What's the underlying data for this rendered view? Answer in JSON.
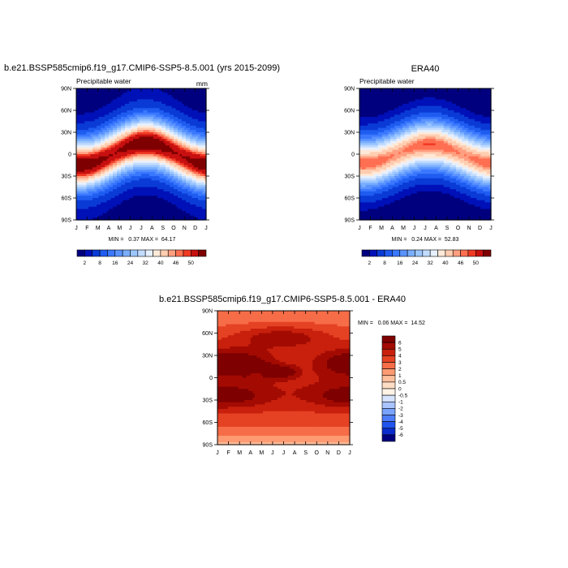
{
  "palette_main": [
    "#00007f",
    "#0011b8",
    "#0a3bd6",
    "#1f5cf0",
    "#3a78ff",
    "#5a93ff",
    "#7aaeff",
    "#9cc6ff",
    "#c2dcff",
    "#e6f0ff",
    "#ffe9d8",
    "#ffcdb0",
    "#ff9f80",
    "#ff6f52",
    "#f03a24",
    "#c81010",
    "#7f0000"
  ],
  "palette_diff": [
    "#00007f",
    "#0a2ccc",
    "#2255ee",
    "#4d7dfa",
    "#7aa3ff",
    "#a9c4ff",
    "#d6e4ff",
    "#fff3e6",
    "#ffdcc4",
    "#ffbf9c",
    "#ff9a72",
    "#f76d48",
    "#e54224",
    "#c8200d",
    "#a30b02",
    "#7f0000"
  ],
  "month_labels": [
    "J",
    "F",
    "M",
    "A",
    "M",
    "J",
    "J",
    "A",
    "S",
    "O",
    "N",
    "D",
    "J"
  ],
  "lat_labels": [
    "90S",
    "60S",
    "30S",
    "0",
    "30N",
    "60N",
    "90N"
  ],
  "chart_data": [
    {
      "type": "heatmap",
      "title": "b.e21.BSSP585cmip6.f19_g17.CMIP6-SSP5-8.5.001 (yrs 2015-2099)",
      "subtitle": "Precipitable water",
      "units": "mm",
      "x": [
        "J",
        "F",
        "M",
        "A",
        "M",
        "J",
        "J",
        "A",
        "S",
        "O",
        "N",
        "D",
        "J"
      ],
      "y": [
        "90S",
        "60S",
        "30S",
        "0",
        "30N",
        "60N",
        "90N"
      ],
      "stats_text": "MIN =   0.37 MAX =  64.17",
      "min": 0.37,
      "max": 64.17,
      "colorbar": {
        "levels": [
          2,
          4,
          8,
          12,
          16,
          20,
          24,
          28,
          32,
          36,
          40,
          44,
          46,
          48,
          50,
          54
        ],
        "labels": [
          "2",
          "8",
          "16",
          "24",
          "32",
          "40",
          "46",
          "50"
        ]
      },
      "model": {
        "eq": 54,
        "pole": 1.5,
        "width": 24,
        "amp": 13,
        "nh": 1.0,
        "sh": 0.85
      }
    },
    {
      "type": "heatmap",
      "title": "ERA40",
      "subtitle": "Precipitable water",
      "x": [
        "J",
        "F",
        "M",
        "A",
        "M",
        "J",
        "J",
        "A",
        "S",
        "O",
        "N",
        "D",
        "J"
      ],
      "y": [
        "90S",
        "60S",
        "30S",
        "0",
        "30N",
        "60N",
        "90N"
      ],
      "stats_text": "MIN =   0.24 MAX =  52.83",
      "min": 0.24,
      "max": 52.83,
      "colorbar": {
        "levels": [
          2,
          4,
          8,
          12,
          16,
          20,
          24,
          28,
          32,
          36,
          40,
          44,
          46,
          48,
          50,
          54
        ],
        "labels": [
          "2",
          "8",
          "16",
          "24",
          "32",
          "40",
          "46",
          "50"
        ]
      },
      "model": {
        "eq": 46,
        "pole": 1.0,
        "width": 23,
        "amp": 11,
        "nh": 0.9,
        "sh": 0.8
      }
    },
    {
      "type": "heatmap",
      "title": "b.e21.BSSP585cmip6.f19_g17.CMIP6-SSP5-8.5.001 - ERA40",
      "x": [
        "J",
        "F",
        "M",
        "A",
        "M",
        "J",
        "J",
        "A",
        "S",
        "O",
        "N",
        "D",
        "J"
      ],
      "y": [
        "90S",
        "60S",
        "30S",
        "0",
        "30N",
        "60N",
        "90N"
      ],
      "stats_text": "MIN =   0.06 MAX =  14.52",
      "min": 0.06,
      "max": 14.52,
      "colorbar": {
        "levels": [
          -6,
          -5,
          -4,
          -3,
          -2,
          -1,
          -0.5,
          0,
          0.5,
          1,
          2,
          3,
          4,
          5,
          6
        ],
        "labels": [
          "6",
          "5",
          "4",
          "3",
          "2",
          "1",
          "0.5",
          "0",
          "-0.5",
          "-1",
          "-2",
          "-3",
          "-4",
          "-5",
          "-6"
        ]
      }
    }
  ]
}
